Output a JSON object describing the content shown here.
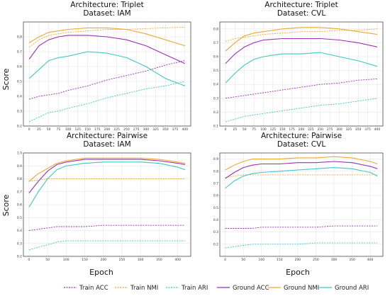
{
  "figure": {
    "y_axis_label": "Score",
    "x_axis_label": "Epoch"
  },
  "legend": [
    {
      "name": "Train ACC",
      "color": "#9b30b5",
      "dashed": true
    },
    {
      "name": "Train NMI",
      "color": "#f0a830",
      "dashed": true
    },
    {
      "name": "Train ARI",
      "color": "#3cc8c8",
      "dashed": true
    },
    {
      "name": "Ground ACC",
      "color": "#9b30b5",
      "dashed": false
    },
    {
      "name": "Ground NMI",
      "color": "#f0a830",
      "dashed": false
    },
    {
      "name": "Ground ARI",
      "color": "#3cc8c8",
      "dashed": false
    }
  ],
  "chart_data": [
    {
      "type": "line",
      "title": [
        "Architecture: Triplet",
        "Dataset: IAM"
      ],
      "x": [
        0,
        25,
        50,
        75,
        100,
        150,
        200,
        250,
        300,
        350,
        400
      ],
      "xlim": [
        -15,
        415
      ],
      "ylim": [
        0.2,
        0.9
      ],
      "xticks": [
        "0",
        "25",
        "50",
        "75",
        "100",
        "125",
        "150",
        "175",
        "200",
        "225",
        "250",
        "275",
        "300",
        "325",
        "350",
        "375",
        "400"
      ],
      "yticks": [
        "0.2",
        "0.3",
        "0.4",
        "0.5",
        "0.6",
        "0.7",
        "0.8"
      ],
      "series": [
        {
          "name": "Train ACC",
          "values": [
            0.38,
            0.4,
            0.41,
            0.42,
            0.44,
            0.47,
            0.51,
            0.54,
            0.57,
            0.61,
            0.64
          ]
        },
        {
          "name": "Train NMI",
          "values": [
            0.73,
            0.78,
            0.81,
            0.82,
            0.83,
            0.84,
            0.85,
            0.85,
            0.855,
            0.86,
            0.865
          ]
        },
        {
          "name": "Train ARI",
          "values": [
            0.23,
            0.26,
            0.29,
            0.3,
            0.32,
            0.35,
            0.39,
            0.42,
            0.45,
            0.47,
            0.5
          ]
        },
        {
          "name": "Ground ACC",
          "values": [
            0.65,
            0.74,
            0.78,
            0.8,
            0.81,
            0.81,
            0.8,
            0.78,
            0.74,
            0.68,
            0.62
          ]
        },
        {
          "name": "Ground NMI",
          "values": [
            0.76,
            0.8,
            0.83,
            0.84,
            0.85,
            0.86,
            0.86,
            0.85,
            0.82,
            0.78,
            0.74
          ]
        },
        {
          "name": "Ground ARI",
          "values": [
            0.52,
            0.58,
            0.64,
            0.66,
            0.67,
            0.7,
            0.69,
            0.66,
            0.6,
            0.52,
            0.47
          ]
        }
      ]
    },
    {
      "type": "line",
      "title": [
        "Architecture: Triplet",
        "Dataset: CVL"
      ],
      "x": [
        0,
        25,
        50,
        75,
        100,
        150,
        200,
        250,
        300,
        350,
        400
      ],
      "xlim": [
        -15,
        415
      ],
      "ylim": [
        0.1,
        0.85
      ],
      "xticks": [
        "0",
        "25",
        "50",
        "75",
        "100",
        "125",
        "150",
        "175",
        "200",
        "225",
        "250",
        "275",
        "300",
        "325",
        "350",
        "375",
        "400"
      ],
      "yticks": [
        "0.1",
        "0.2",
        "0.3",
        "0.4",
        "0.5",
        "0.6",
        "0.7",
        "0.8"
      ],
      "series": [
        {
          "name": "Train ACC",
          "values": [
            0.3,
            0.31,
            0.32,
            0.33,
            0.34,
            0.36,
            0.38,
            0.4,
            0.41,
            0.43,
            0.44
          ]
        },
        {
          "name": "Train NMI",
          "values": [
            0.71,
            0.73,
            0.74,
            0.75,
            0.76,
            0.77,
            0.78,
            0.78,
            0.79,
            0.79,
            0.8
          ]
        },
        {
          "name": "Train ARI",
          "values": [
            0.13,
            0.15,
            0.17,
            0.18,
            0.19,
            0.21,
            0.23,
            0.25,
            0.26,
            0.28,
            0.3
          ]
        },
        {
          "name": "Ground ACC",
          "values": [
            0.55,
            0.62,
            0.67,
            0.7,
            0.72,
            0.73,
            0.73,
            0.73,
            0.72,
            0.7,
            0.67
          ]
        },
        {
          "name": "Ground NMI",
          "values": [
            0.64,
            0.7,
            0.75,
            0.77,
            0.78,
            0.8,
            0.81,
            0.81,
            0.8,
            0.78,
            0.76
          ]
        },
        {
          "name": "Ground ARI",
          "values": [
            0.41,
            0.48,
            0.54,
            0.58,
            0.6,
            0.62,
            0.62,
            0.63,
            0.6,
            0.57,
            0.53
          ]
        }
      ]
    },
    {
      "type": "line",
      "title": [
        "Architecture: Pairwise",
        "Dataset: IAM"
      ],
      "x": [
        0,
        25,
        50,
        75,
        100,
        150,
        200,
        250,
        300,
        350,
        400,
        420
      ],
      "xlim": [
        -15,
        435
      ],
      "ylim": [
        0.2,
        1.0
      ],
      "xticks": [
        "0",
        "50",
        "100",
        "150",
        "200",
        "250",
        "300",
        "350",
        "400"
      ],
      "yticks": [
        "0.2",
        "0.3",
        "0.4",
        "0.5",
        "0.6",
        "0.7",
        "0.8",
        "0.9",
        "1.0"
      ],
      "series": [
        {
          "name": "Train ACC",
          "values": [
            0.4,
            0.41,
            0.42,
            0.43,
            0.43,
            0.43,
            0.44,
            0.44,
            0.44,
            0.44,
            0.44,
            0.44
          ]
        },
        {
          "name": "Train NMI",
          "values": [
            0.78,
            0.79,
            0.8,
            0.8,
            0.8,
            0.8,
            0.8,
            0.8,
            0.8,
            0.8,
            0.8,
            0.8
          ]
        },
        {
          "name": "Train ARI",
          "values": [
            0.25,
            0.27,
            0.29,
            0.31,
            0.32,
            0.32,
            0.32,
            0.32,
            0.32,
            0.32,
            0.32,
            0.32
          ]
        },
        {
          "name": "Ground ACC",
          "values": [
            0.69,
            0.78,
            0.86,
            0.91,
            0.93,
            0.95,
            0.95,
            0.95,
            0.95,
            0.94,
            0.92,
            0.91
          ]
        },
        {
          "name": "Ground NMI",
          "values": [
            0.78,
            0.84,
            0.88,
            0.92,
            0.94,
            0.96,
            0.96,
            0.96,
            0.96,
            0.95,
            0.93,
            0.92
          ]
        },
        {
          "name": "Ground ARI",
          "values": [
            0.58,
            0.7,
            0.8,
            0.87,
            0.9,
            0.92,
            0.93,
            0.93,
            0.93,
            0.92,
            0.89,
            0.87
          ]
        }
      ]
    },
    {
      "type": "line",
      "title": [
        "Architecture: Pairwise",
        "Dataset: CVL"
      ],
      "x": [
        0,
        25,
        50,
        75,
        100,
        150,
        200,
        250,
        300,
        350,
        400,
        420
      ],
      "xlim": [
        -15,
        435
      ],
      "ylim": [
        0.1,
        0.95
      ],
      "xticks": [
        "0",
        "50",
        "100",
        "150",
        "200",
        "250",
        "300",
        "350",
        "400"
      ],
      "yticks": [
        "0.2",
        "0.3",
        "0.4",
        "0.5",
        "0.6",
        "0.7",
        "0.8",
        "0.9"
      ],
      "series": [
        {
          "name": "Train ACC",
          "values": [
            0.33,
            0.33,
            0.33,
            0.33,
            0.34,
            0.34,
            0.34,
            0.34,
            0.35,
            0.35,
            0.35,
            0.35
          ]
        },
        {
          "name": "Train NMI",
          "values": [
            0.75,
            0.76,
            0.77,
            0.77,
            0.77,
            0.77,
            0.77,
            0.77,
            0.77,
            0.77,
            0.77,
            0.77
          ]
        },
        {
          "name": "Train ARI",
          "values": [
            0.17,
            0.18,
            0.19,
            0.2,
            0.2,
            0.2,
            0.2,
            0.21,
            0.21,
            0.21,
            0.21,
            0.21
          ]
        },
        {
          "name": "Ground ACC",
          "values": [
            0.74,
            0.79,
            0.83,
            0.85,
            0.86,
            0.86,
            0.87,
            0.87,
            0.88,
            0.87,
            0.84,
            0.82
          ]
        },
        {
          "name": "Ground NMI",
          "values": [
            0.81,
            0.85,
            0.88,
            0.9,
            0.9,
            0.9,
            0.91,
            0.91,
            0.92,
            0.91,
            0.88,
            0.86
          ]
        },
        {
          "name": "Ground ARI",
          "values": [
            0.66,
            0.72,
            0.76,
            0.78,
            0.79,
            0.8,
            0.81,
            0.82,
            0.83,
            0.82,
            0.79,
            0.76
          ]
        }
      ]
    }
  ]
}
